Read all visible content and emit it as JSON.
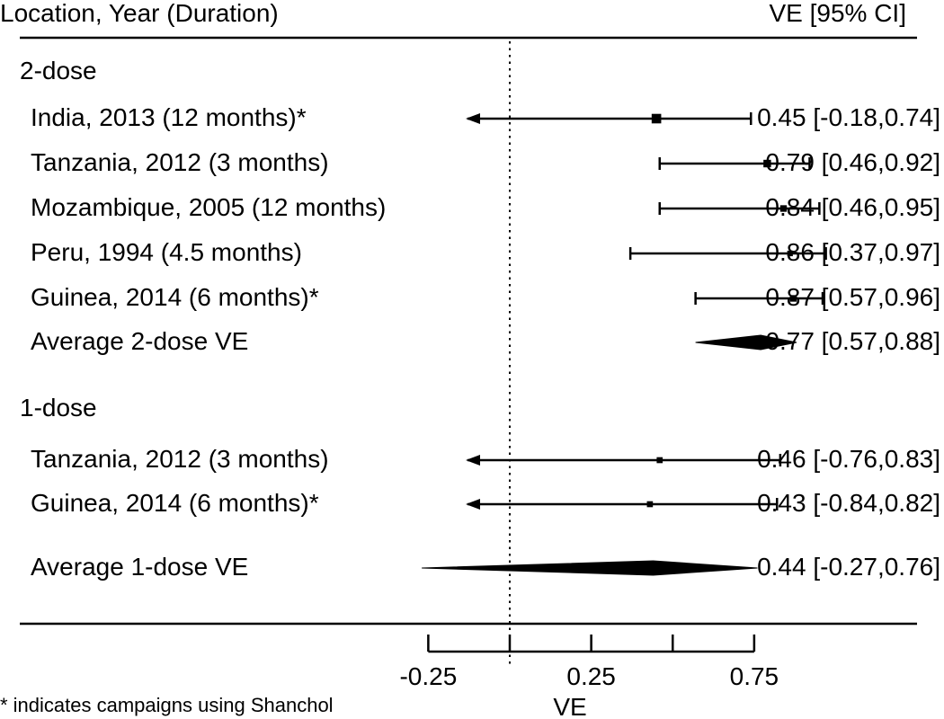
{
  "chart_data": {
    "type": "forest",
    "header": {
      "left": "Location, Year (Duration)",
      "right": "VE [95% CI]"
    },
    "xlabel": "VE",
    "xlim": [
      -0.25,
      0.75
    ],
    "null_line": 0,
    "x_ticks": [
      -0.25,
      0,
      0.25,
      0.5,
      0.75
    ],
    "x_tick_labels": [
      "-0.25",
      "",
      "0.25",
      "",
      "0.75"
    ],
    "groups": [
      {
        "name": "2-dose",
        "rows": [
          {
            "label": "India, 2013 (12 months)*",
            "ve": 0.45,
            "lo": -0.18,
            "hi": 0.74,
            "ci_text": "0.45 [-0.18,0.74]",
            "kind": "study",
            "weight": 3
          },
          {
            "label": "Tanzania, 2012 (3 months)",
            "ve": 0.79,
            "lo": 0.46,
            "hi": 0.92,
            "ci_text": "0.79 [0.46,0.92]",
            "kind": "study",
            "weight": 2
          },
          {
            "label": "Mozambique, 2005 (12 months)",
            "ve": 0.84,
            "lo": 0.46,
            "hi": 0.95,
            "ci_text": "0.84 [0.46,0.95]",
            "kind": "study",
            "weight": 1.5
          },
          {
            "label": "Peru, 1994 (4.5 months)",
            "ve": 0.86,
            "lo": 0.37,
            "hi": 0.97,
            "ci_text": "0.86 [0.37,0.97]",
            "kind": "study",
            "weight": 1
          },
          {
            "label": "Guinea, 2014 (6 months)*",
            "ve": 0.87,
            "lo": 0.57,
            "hi": 0.96,
            "ci_text": "0.87 [0.57,0.96]",
            "kind": "study",
            "weight": 1.5
          },
          {
            "label": "Average 2-dose VE",
            "ve": 0.77,
            "lo": 0.57,
            "hi": 0.88,
            "ci_text": "0.77 [0.57,0.88]",
            "kind": "summary"
          }
        ]
      },
      {
        "name": "1-dose",
        "rows": [
          {
            "label": "Tanzania, 2012 (3 months)",
            "ve": 0.46,
            "lo": -0.76,
            "hi": 0.83,
            "ci_text": "0.46 [-0.76,0.83]",
            "kind": "study",
            "weight": 1.2
          },
          {
            "label": "Guinea, 2014 (6 months)*",
            "ve": 0.43,
            "lo": -0.84,
            "hi": 0.82,
            "ci_text": "0.43 [-0.84,0.82]",
            "kind": "study",
            "weight": 1.2
          },
          {
            "label": "Average 1-dose VE",
            "ve": 0.44,
            "lo": -0.27,
            "hi": 0.76,
            "ci_text": "0.44 [-0.27,0.76]",
            "kind": "summary"
          }
        ]
      }
    ],
    "footnote": "* indicates campaigns using Shanchol",
    "colors": {
      "ink": "#000000",
      "background": "#ffffff"
    }
  }
}
